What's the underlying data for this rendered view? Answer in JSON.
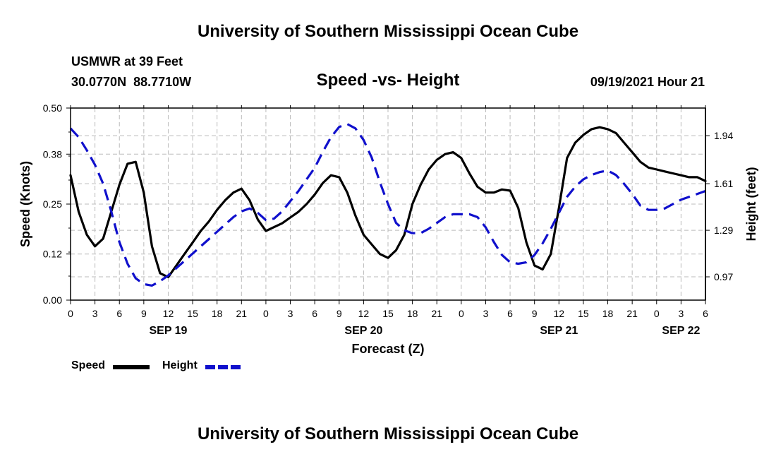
{
  "header": {
    "title": "University of Southern Mississippi Ocean Cube",
    "station": "USMWR at 39 Feet",
    "coords": "30.0770N  88.7710W",
    "subtitle": "Speed -vs- Height",
    "datetime": "09/19/2021 Hour 21"
  },
  "footer": {
    "title": "University of Southern Mississippi Ocean Cube"
  },
  "legend": {
    "speed_label": "Speed",
    "height_label": "Height"
  },
  "colors": {
    "speed": "#000000",
    "height": "#1010cc",
    "grid": "#bbbbbb"
  },
  "chart_data": {
    "type": "line",
    "title": "Speed -vs- Height",
    "xlabel": "Forecast (Z)",
    "ylabel": "Speed (Knots)",
    "y2label": "Height (feet)",
    "xlim": [
      0,
      78
    ],
    "ylim": [
      0,
      0.5
    ],
    "y2lim": [
      0.81,
      2.13
    ],
    "x_ticks": [
      0,
      3,
      6,
      9,
      12,
      15,
      18,
      21,
      24,
      27,
      30,
      33,
      36,
      39,
      42,
      45,
      48,
      51,
      54,
      57,
      60,
      63,
      66,
      69,
      72,
      75,
      78
    ],
    "x_tick_labels": [
      "0",
      "3",
      "6",
      "9",
      "12",
      "15",
      "18",
      "21",
      "0",
      "3",
      "6",
      "9",
      "12",
      "15",
      "18",
      "21",
      "0",
      "3",
      "6",
      "9",
      "12",
      "15",
      "18",
      "21",
      "0",
      "3",
      "6"
    ],
    "date_labels": [
      {
        "x": 12,
        "label": "SEP 19"
      },
      {
        "x": 36,
        "label": "SEP 20"
      },
      {
        "x": 60,
        "label": "SEP 21"
      },
      {
        "x": 75,
        "label": "SEP 22"
      }
    ],
    "y_ticks": [
      0.0,
      0.12,
      0.25,
      0.38,
      0.5
    ],
    "y_tick_labels": [
      "0.00",
      "0.12",
      "0.25",
      "0.38",
      "0.50"
    ],
    "y2_ticks": [
      0.97,
      1.29,
      1.61,
      1.94
    ],
    "y2_tick_labels": [
      "0.97",
      "1.29",
      "1.61",
      "1.94"
    ],
    "grid": true,
    "series": [
      {
        "name": "Speed",
        "axis": "left",
        "style": "solid",
        "x": [
          0,
          1,
          2,
          3,
          4,
          5,
          6,
          7,
          8,
          9,
          10,
          11,
          12,
          13,
          14,
          15,
          16,
          17,
          18,
          19,
          20,
          21,
          22,
          23,
          24,
          25,
          26,
          27,
          28,
          29,
          30,
          31,
          32,
          33,
          34,
          35,
          36,
          37,
          38,
          39,
          40,
          41,
          42,
          43,
          44,
          45,
          46,
          47,
          48,
          49,
          50,
          51,
          52,
          53,
          54,
          55,
          56,
          57,
          58,
          59,
          60,
          61,
          62,
          63,
          64,
          65,
          66,
          67,
          68,
          69,
          70,
          71,
          72,
          73,
          74,
          75,
          76,
          77,
          78
        ],
        "values": [
          0.325,
          0.23,
          0.17,
          0.14,
          0.16,
          0.23,
          0.3,
          0.355,
          0.36,
          0.28,
          0.14,
          0.07,
          0.06,
          0.09,
          0.12,
          0.15,
          0.18,
          0.205,
          0.235,
          0.26,
          0.28,
          0.29,
          0.26,
          0.21,
          0.18,
          0.19,
          0.2,
          0.215,
          0.23,
          0.25,
          0.275,
          0.305,
          0.325,
          0.32,
          0.28,
          0.22,
          0.17,
          0.145,
          0.12,
          0.11,
          0.13,
          0.17,
          0.25,
          0.3,
          0.34,
          0.365,
          0.38,
          0.385,
          0.37,
          0.33,
          0.295,
          0.28,
          0.28,
          0.288,
          0.285,
          0.24,
          0.15,
          0.09,
          0.08,
          0.12,
          0.24,
          0.37,
          0.41,
          0.43,
          0.445,
          0.45,
          0.445,
          0.435,
          0.41,
          0.385,
          0.36,
          0.345,
          0.34,
          0.335,
          0.33,
          0.325,
          0.32,
          0.32,
          0.31
        ]
      },
      {
        "name": "Height",
        "axis": "right",
        "style": "dashed",
        "x": [
          0,
          1,
          2,
          3,
          4,
          5,
          6,
          7,
          8,
          9,
          10,
          11,
          12,
          13,
          14,
          15,
          16,
          17,
          18,
          19,
          20,
          21,
          22,
          23,
          24,
          25,
          26,
          27,
          28,
          29,
          30,
          31,
          32,
          33,
          34,
          35,
          36,
          37,
          38,
          39,
          40,
          41,
          42,
          43,
          44,
          45,
          46,
          47,
          48,
          49,
          50,
          51,
          52,
          53,
          54,
          55,
          56,
          57,
          58,
          59,
          60,
          61,
          62,
          63,
          64,
          65,
          66,
          67,
          68,
          69,
          70,
          71,
          72,
          73,
          74,
          75,
          76,
          77,
          78
        ],
        "values": [
          1.99,
          1.93,
          1.84,
          1.74,
          1.61,
          1.42,
          1.21,
          1.06,
          0.96,
          0.92,
          0.91,
          0.94,
          0.98,
          1.03,
          1.08,
          1.13,
          1.18,
          1.23,
          1.28,
          1.33,
          1.38,
          1.42,
          1.44,
          1.41,
          1.36,
          1.37,
          1.42,
          1.49,
          1.56,
          1.64,
          1.72,
          1.83,
          1.93,
          2.0,
          2.02,
          1.99,
          1.91,
          1.79,
          1.62,
          1.47,
          1.34,
          1.29,
          1.27,
          1.27,
          1.3,
          1.34,
          1.38,
          1.4,
          1.4,
          1.4,
          1.38,
          1.31,
          1.21,
          1.12,
          1.07,
          1.06,
          1.07,
          1.12,
          1.2,
          1.3,
          1.41,
          1.52,
          1.59,
          1.64,
          1.67,
          1.69,
          1.7,
          1.67,
          1.61,
          1.54,
          1.46,
          1.43,
          1.43,
          1.44,
          1.47,
          1.5,
          1.52,
          1.54,
          1.56
        ]
      }
    ]
  }
}
